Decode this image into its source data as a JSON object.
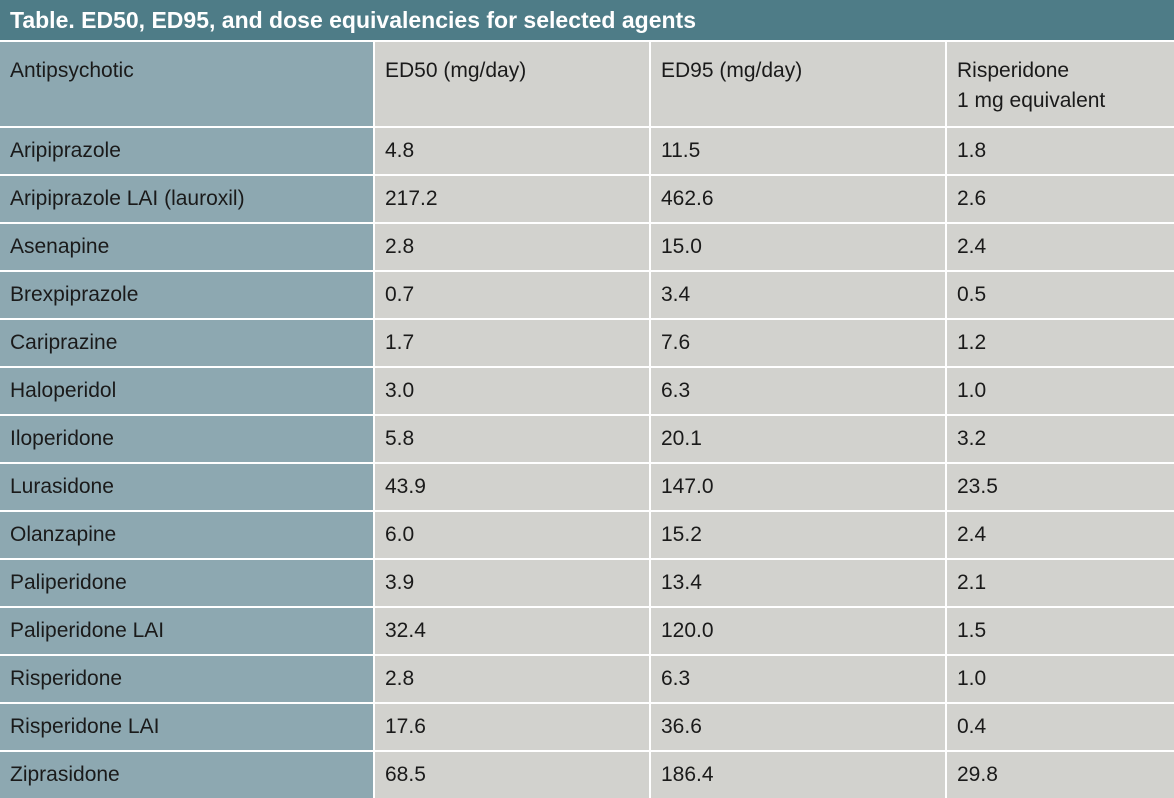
{
  "table": {
    "title": "Table. ED50, ED95, and dose equivalencies for selected agents",
    "header": [
      "Antipsychotic",
      "ED50 (mg/day)",
      "ED95 (mg/day)",
      "Risperidone\n1 mg equivalent"
    ],
    "rows": [
      [
        "Aripiprazole",
        "4.8",
        "11.5",
        "1.8"
      ],
      [
        "Aripiprazole LAI (lauroxil)",
        "217.2",
        "462.6",
        "2.6"
      ],
      [
        "Asenapine",
        "2.8",
        "15.0",
        "2.4"
      ],
      [
        "Brexpiprazole",
        "0.7",
        "3.4",
        "0.5"
      ],
      [
        "Cariprazine",
        "1.7",
        "7.6",
        "1.2"
      ],
      [
        "Haloperidol",
        "3.0",
        "6.3",
        "1.0"
      ],
      [
        "Iloperidone",
        "5.8",
        "20.1",
        "3.2"
      ],
      [
        "Lurasidone",
        "43.9",
        "147.0",
        "23.5"
      ],
      [
        "Olanzapine",
        "6.0",
        "15.2",
        "2.4"
      ],
      [
        "Paliperidone",
        "3.9",
        "13.4",
        "2.1"
      ],
      [
        "Paliperidone LAI",
        "32.4",
        "120.0",
        "1.5"
      ],
      [
        "Risperidone",
        "2.8",
        "6.3",
        "1.0"
      ],
      [
        "Risperidone LAI",
        "17.6",
        "36.6",
        "0.4"
      ],
      [
        "Ziprasidone",
        "68.5",
        "186.4",
        "29.8"
      ]
    ]
  }
}
